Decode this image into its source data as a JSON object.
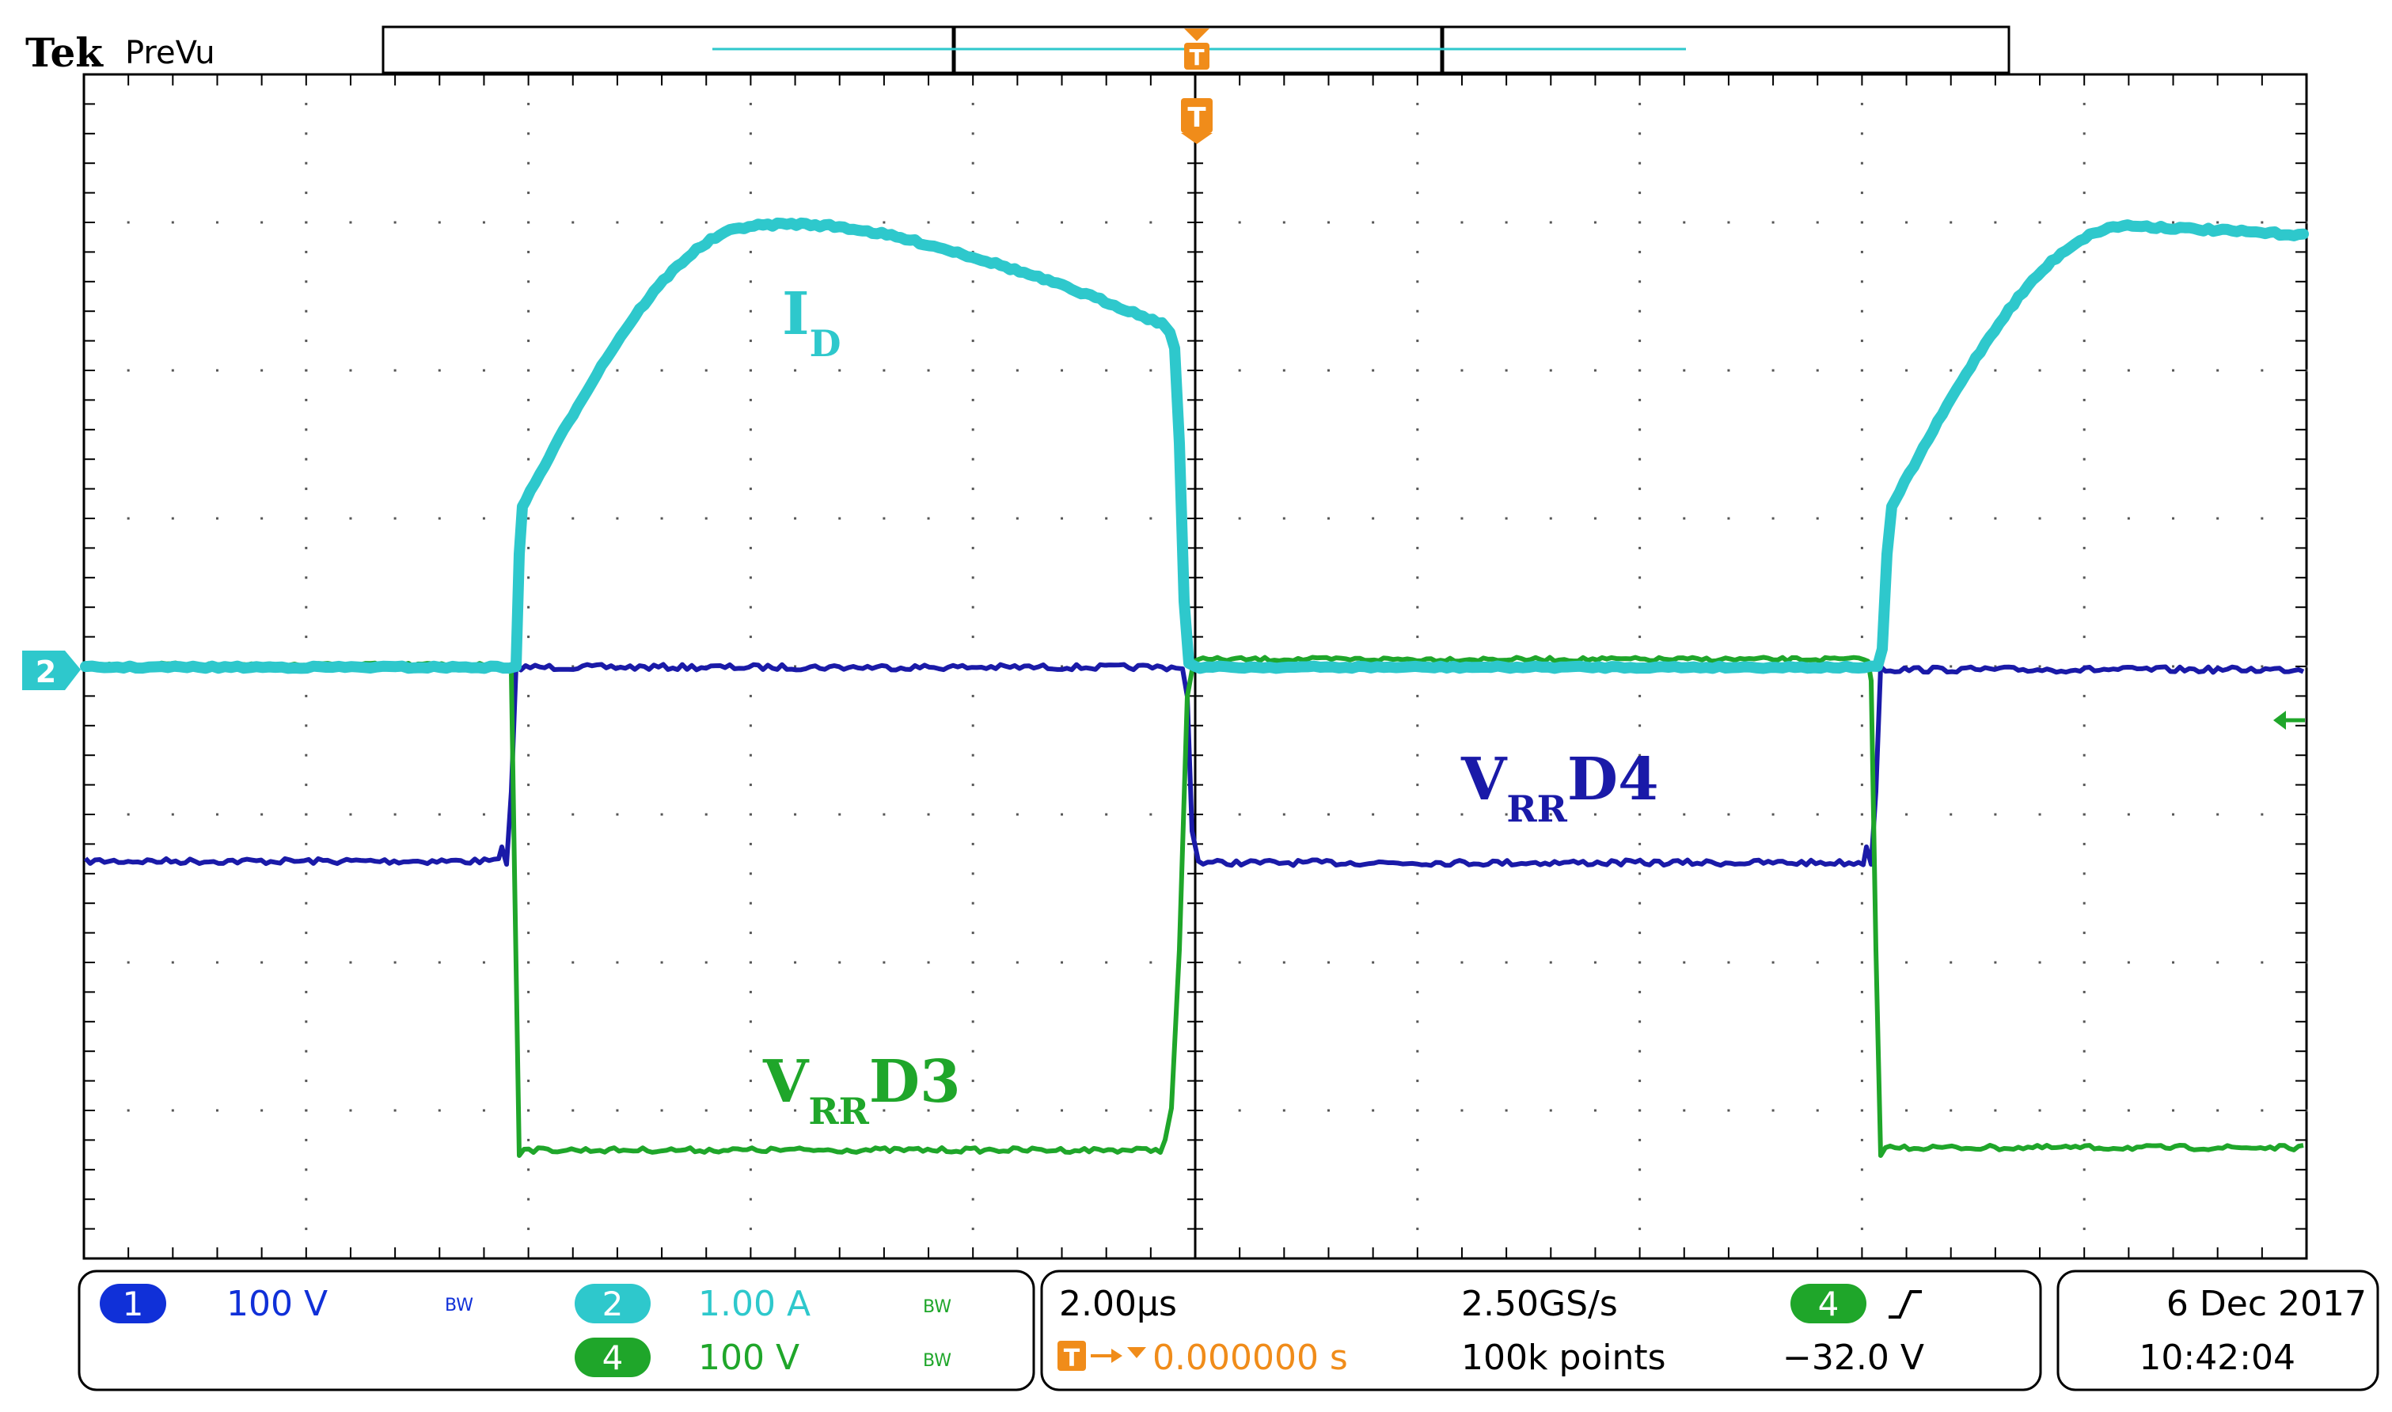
{
  "header": {
    "brand": "Tek",
    "mode": "PreVu"
  },
  "trigger_markers": {
    "top": "T",
    "trigger": "T"
  },
  "channel_marker": "2",
  "trace_labels": {
    "id": {
      "main": "I",
      "sub": "D"
    },
    "vrr_d4": {
      "main": "V",
      "sub": "RR",
      "suffix": "D4"
    },
    "vrr_d3": {
      "main": "V",
      "sub": "RR",
      "suffix": "D3"
    }
  },
  "status": {
    "ch1": {
      "num": "1",
      "scale": "100 V",
      "bw": "BW"
    },
    "ch2": {
      "num": "2",
      "scale": "1.00 A",
      "bw": "BW"
    },
    "ch4": {
      "num": "4",
      "scale": "100 V",
      "bw": "BW"
    },
    "timebase": "2.00µs",
    "sample_rate": "2.50GS/s",
    "trigger_pos": "0.000000 s",
    "record": "100k points",
    "trig_ch": "4",
    "trig_level": "−32.0 V",
    "date": "6 Dec  2017",
    "time": "10:42:04"
  },
  "colors": {
    "ch1": "#1a1aa8",
    "ch2": "#2ec8cc",
    "ch4": "#1fa62a",
    "trigger": "#f08c1a",
    "ch1_badge": "#1030d8"
  }
}
